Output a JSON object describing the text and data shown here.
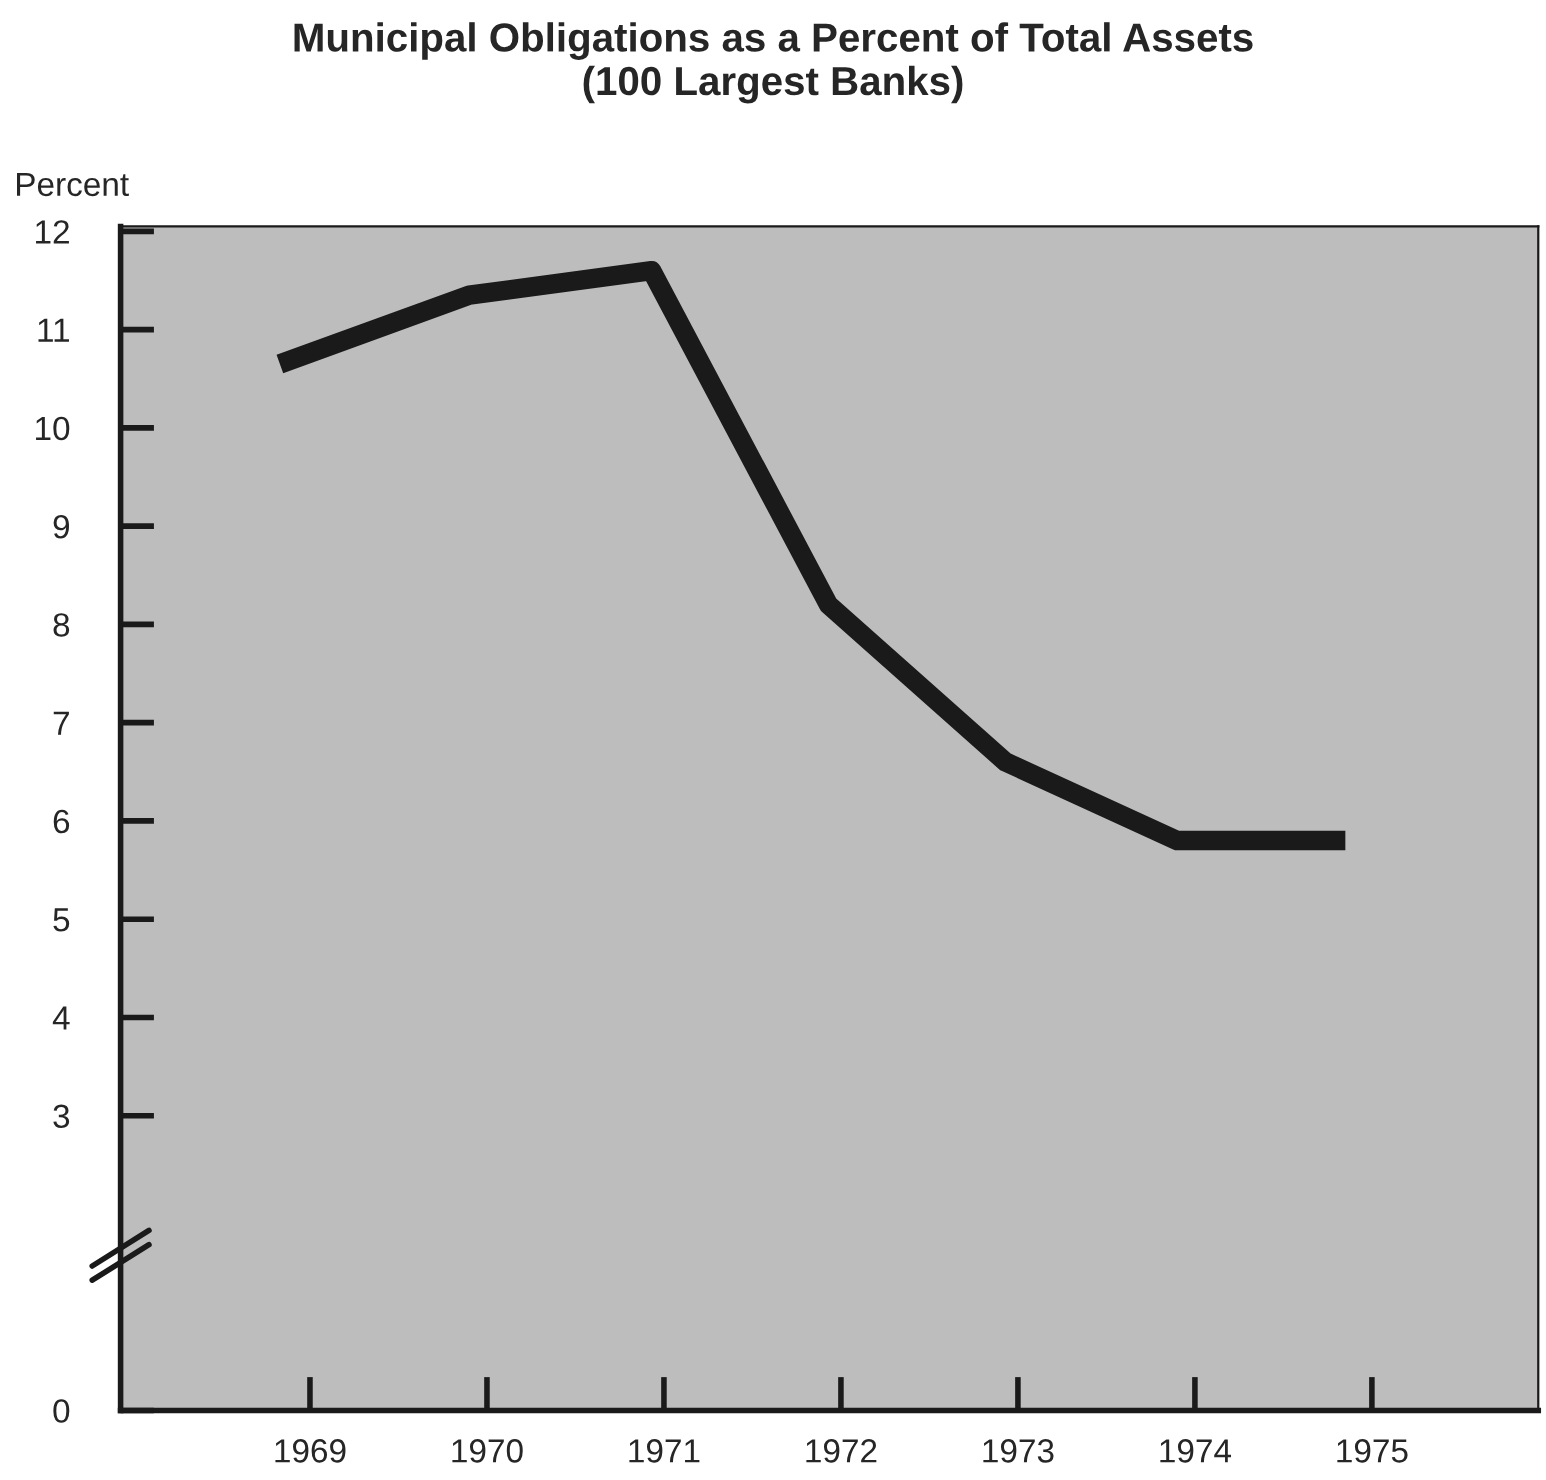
{
  "chart_data": {
    "type": "line",
    "title": "Municipal Obligations as a Percent of Total Assets\n(100 Largest Banks)",
    "ylabel": "Percent",
    "x": [
      1968.83,
      1969.9,
      1970.93,
      1971.93,
      1972.93,
      1973.9,
      1974.85
    ],
    "series": [
      {
        "color": "#1a1a1a",
        "values": [
          10.65,
          11.35,
          11.6,
          8.2,
          6.6,
          5.8,
          5.8
        ]
      }
    ],
    "xlim": [
      1967.93,
      1975.94
    ],
    "xticks": [
      1969,
      1970,
      1971,
      1972,
      1973,
      1974,
      1975
    ],
    "ylim": [
      0,
      12.05
    ],
    "yticks": [
      0,
      3,
      4,
      5,
      6,
      7,
      8,
      9,
      10,
      11,
      12
    ],
    "grid": false,
    "marker": "none",
    "line_style": "solid"
  }
}
